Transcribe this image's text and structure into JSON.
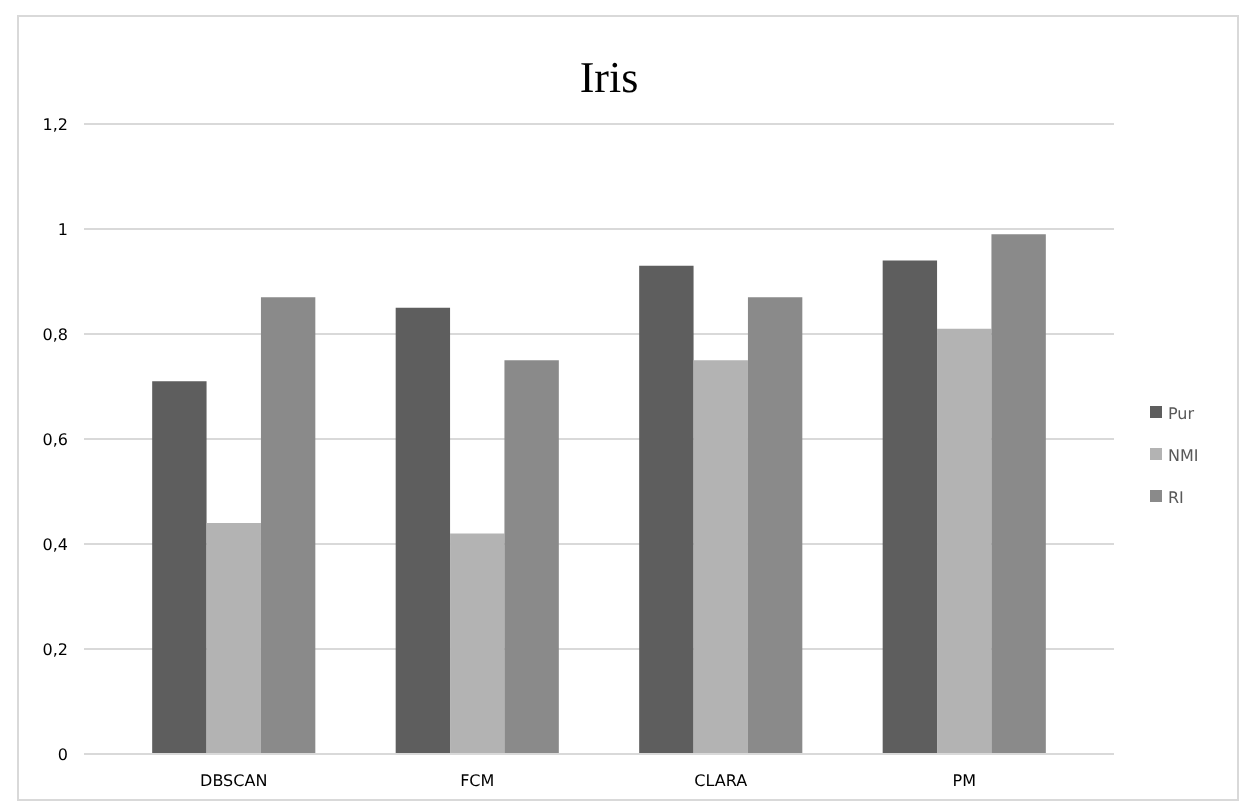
{
  "chart_data": {
    "type": "bar",
    "title": "Iris",
    "categories": [
      "DBSCAN",
      "FCM",
      "CLARA",
      "PM"
    ],
    "series": [
      {
        "name": "Pur",
        "color": "#5e5e5e",
        "values": [
          0.71,
          0.85,
          0.93,
          0.94
        ]
      },
      {
        "name": "NMI",
        "color": "#b3b3b3",
        "values": [
          0.44,
          0.42,
          0.75,
          0.81
        ]
      },
      {
        "name": "RI",
        "color": "#8a8a8a",
        "values": [
          0.87,
          0.75,
          0.87,
          0.99
        ]
      }
    ],
    "ylim": [
      0,
      1.2
    ],
    "yticks": [
      0,
      {
        "value": 0.2,
        "label": "0,2"
      },
      {
        "value": 0.4,
        "label": "0,4"
      },
      {
        "value": 0.6,
        "label": "0,6"
      },
      {
        "value": 0.8,
        "label": "0,8"
      },
      1,
      {
        "value": 1.2,
        "label": "1,2"
      }
    ],
    "grid": "y",
    "legend": "right"
  }
}
